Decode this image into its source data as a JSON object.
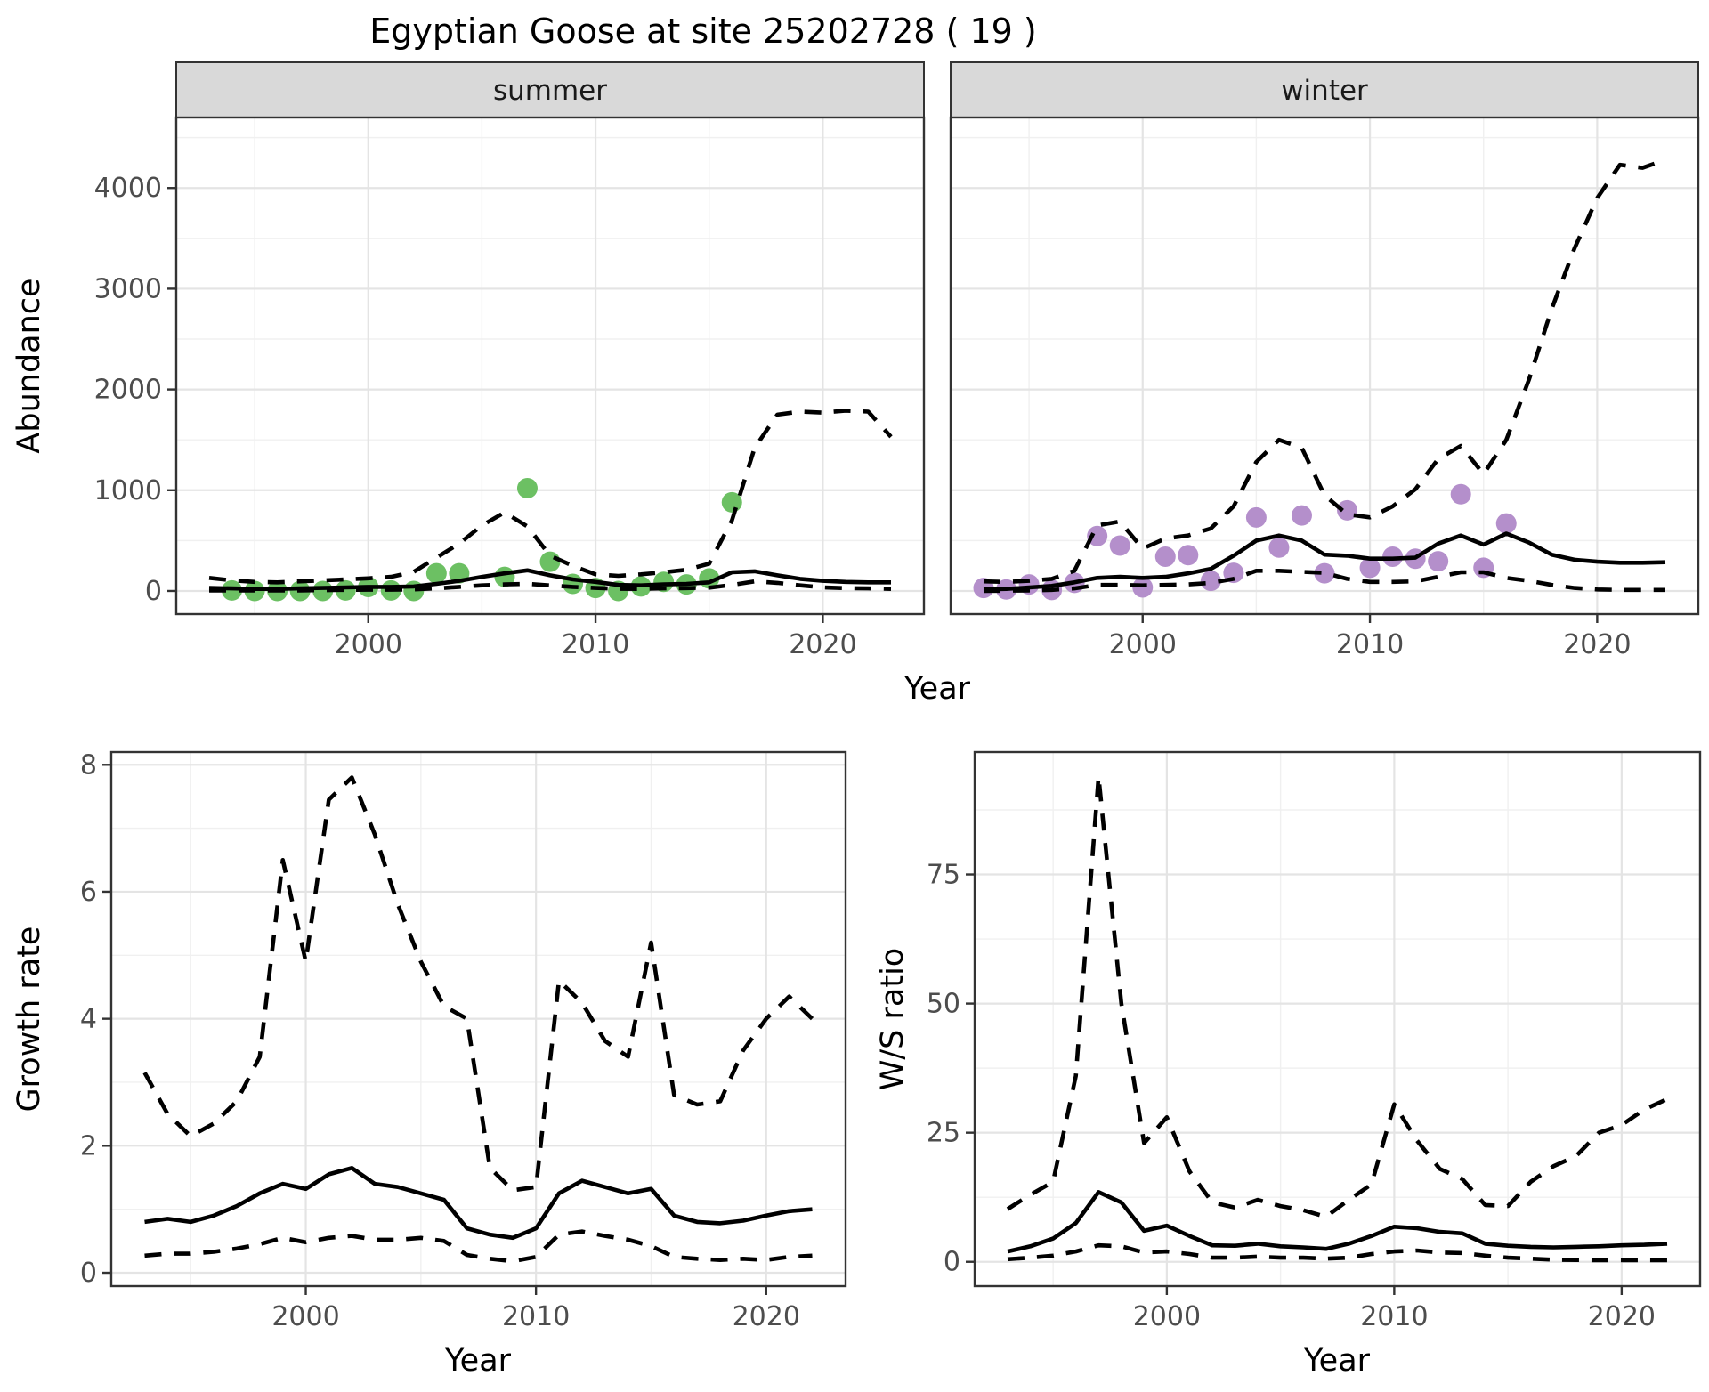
{
  "title": "Egyptian Goose at site 25202728 ( 19 )",
  "colors": {
    "background": "#ffffff",
    "strip_bg": "#d9d9d9",
    "panel_border": "#333333",
    "grid_major": "#e4e4e4",
    "grid_minor": "#f0f0f0",
    "tick_label": "#4d4d4d",
    "tick_mark": "#333333",
    "line": "#000000",
    "summer_points": "#6cc063",
    "winter_points": "#b48fcb"
  },
  "chart_data": [
    {
      "id": "abundance-summer",
      "type": "line",
      "facet_label": "summer",
      "xlabel": "Year",
      "ylabel": "Abundance",
      "x_ticks": [
        2000,
        2010,
        2020
      ],
      "x_minor_ticks": [
        1995,
        2005,
        2015
      ],
      "y_ticks": [
        0,
        1000,
        2000,
        3000,
        4000
      ],
      "y_minor_ticks": [
        500,
        1500,
        2500,
        3500,
        4500
      ],
      "ylim": [
        -230,
        4700
      ],
      "point_color": "#6cc063",
      "legend": "none",
      "grid": "on",
      "series": {
        "observed": {
          "years": [
            1994,
            1995,
            1996,
            1997,
            1998,
            1999,
            2000,
            2001,
            2002,
            2003,
            2004,
            2006,
            2007,
            2008,
            2009,
            2010,
            2011,
            2012,
            2013,
            2014,
            2015,
            2016
          ],
          "values": [
            5,
            0,
            0,
            0,
            0,
            5,
            40,
            5,
            0,
            175,
            175,
            140,
            1020,
            290,
            70,
            30,
            0,
            45,
            90,
            65,
            125,
            880
          ]
        },
        "fitted": {
          "years": [
            1993,
            1994,
            1995,
            1996,
            1997,
            1998,
            1999,
            2000,
            2001,
            2002,
            2003,
            2004,
            2005,
            2006,
            2007,
            2008,
            2009,
            2010,
            2011,
            2012,
            2013,
            2014,
            2015,
            2016,
            2017,
            2018,
            2019,
            2020,
            2021,
            2022,
            2023
          ],
          "values": [
            30,
            25,
            20,
            20,
            25,
            30,
            35,
            40,
            40,
            45,
            70,
            100,
            140,
            175,
            205,
            155,
            115,
            90,
            60,
            55,
            65,
            70,
            85,
            185,
            195,
            155,
            120,
            100,
            90,
            85,
            85
          ]
        },
        "upper_ci": {
          "years": [
            1993,
            1994,
            1995,
            1996,
            1997,
            1998,
            1999,
            2000,
            2001,
            2002,
            2003,
            2004,
            2005,
            2006,
            2007,
            2008,
            2009,
            2010,
            2011,
            2012,
            2013,
            2014,
            2015,
            2016,
            2017,
            2018,
            2019,
            2020,
            2021,
            2022,
            2023
          ],
          "values": [
            130,
            105,
            90,
            85,
            95,
            105,
            115,
            125,
            140,
            190,
            330,
            470,
            650,
            780,
            640,
            350,
            250,
            165,
            150,
            165,
            185,
            210,
            270,
            700,
            1420,
            1750,
            1780,
            1770,
            1790,
            1780,
            1530
          ]
        },
        "lower_ci": {
          "years": [
            1993,
            1994,
            1995,
            1996,
            1997,
            1998,
            1999,
            2000,
            2001,
            2002,
            2003,
            2004,
            2005,
            2006,
            2007,
            2008,
            2009,
            2010,
            2011,
            2012,
            2013,
            2014,
            2015,
            2016,
            2017,
            2018,
            2019,
            2020,
            2021,
            2022,
            2023
          ],
          "values": [
            5,
            5,
            5,
            5,
            5,
            8,
            10,
            12,
            12,
            15,
            25,
            40,
            55,
            65,
            70,
            55,
            40,
            30,
            22,
            20,
            25,
            28,
            32,
            60,
            95,
            80,
            55,
            35,
            28,
            25,
            20
          ]
        }
      }
    },
    {
      "id": "abundance-winter",
      "type": "line",
      "facet_label": "winter",
      "xlabel": "Year",
      "ylabel": "Abundance",
      "x_ticks": [
        2000,
        2010,
        2020
      ],
      "x_minor_ticks": [
        1995,
        2005,
        2015
      ],
      "y_ticks": [
        0,
        1000,
        2000,
        3000,
        4000
      ],
      "y_minor_ticks": [
        500,
        1500,
        2500,
        3500,
        4500
      ],
      "ylim": [
        -230,
        4700
      ],
      "point_color": "#b48fcb",
      "legend": "none",
      "grid": "on",
      "series": {
        "observed": {
          "years": [
            1993,
            1994,
            1995,
            1996,
            1997,
            1998,
            1999,
            2000,
            2001,
            2002,
            2003,
            2004,
            2005,
            2006,
            2007,
            2008,
            2009,
            2010,
            2011,
            2012,
            2013,
            2014,
            2015,
            2016
          ],
          "values": [
            30,
            15,
            65,
            10,
            80,
            545,
            450,
            35,
            340,
            355,
            100,
            180,
            730,
            430,
            750,
            175,
            800,
            230,
            340,
            320,
            295,
            960,
            230,
            670
          ]
        },
        "fitted": {
          "years": [
            1993,
            1994,
            1995,
            1996,
            1997,
            1998,
            1999,
            2000,
            2001,
            2002,
            2003,
            2004,
            2005,
            2006,
            2007,
            2008,
            2009,
            2010,
            2011,
            2012,
            2013,
            2014,
            2015,
            2016,
            2017,
            2018,
            2019,
            2020,
            2021,
            2022,
            2023
          ],
          "values": [
            15,
            20,
            35,
            50,
            85,
            130,
            140,
            130,
            140,
            175,
            220,
            350,
            500,
            550,
            500,
            360,
            350,
            320,
            320,
            330,
            470,
            550,
            460,
            570,
            480,
            360,
            310,
            290,
            280,
            280,
            285
          ]
        },
        "upper_ci": {
          "years": [
            1993,
            1994,
            1995,
            1996,
            1997,
            1998,
            1999,
            2000,
            2001,
            2002,
            2003,
            2004,
            2005,
            2006,
            2007,
            2008,
            2009,
            2010,
            2011,
            2012,
            2013,
            2014,
            2015,
            2016,
            2017,
            2018,
            2019,
            2020,
            2021,
            2022,
            2023
          ],
          "values": [
            95,
            90,
            100,
            120,
            200,
            650,
            690,
            420,
            520,
            550,
            620,
            840,
            1280,
            1500,
            1420,
            950,
            760,
            730,
            840,
            1010,
            1310,
            1440,
            1160,
            1500,
            2100,
            2800,
            3400,
            3900,
            4230,
            4200,
            4280
          ]
        },
        "lower_ci": {
          "years": [
            1993,
            1994,
            1995,
            1996,
            1997,
            1998,
            1999,
            2000,
            2001,
            2002,
            2003,
            2004,
            2005,
            2006,
            2007,
            2008,
            2009,
            2010,
            2011,
            2012,
            2013,
            2014,
            2015,
            2016,
            2017,
            2018,
            2019,
            2020,
            2021,
            2022,
            2023
          ],
          "values": [
            0,
            2,
            5,
            10,
            25,
            60,
            60,
            55,
            60,
            65,
            80,
            120,
            200,
            200,
            190,
            180,
            120,
            90,
            90,
            95,
            140,
            185,
            185,
            130,
            100,
            60,
            30,
            15,
            10,
            10,
            10
          ]
        }
      }
    },
    {
      "id": "growth-rate",
      "type": "line",
      "xlabel": "Year",
      "ylabel": "Growth rate",
      "x_ticks": [
        2000,
        2010,
        2020
      ],
      "x_minor_ticks": [
        1995,
        2005,
        2015
      ],
      "y_ticks": [
        0,
        2,
        4,
        6,
        8
      ],
      "y_minor_ticks": [
        1,
        3,
        5,
        7
      ],
      "ylim": [
        -0.21,
        8.2
      ],
      "legend": "none",
      "grid": "on",
      "series": {
        "fitted": {
          "years": [
            1993,
            1994,
            1995,
            1996,
            1997,
            1998,
            1999,
            2000,
            2001,
            2002,
            2003,
            2004,
            2005,
            2006,
            2007,
            2008,
            2009,
            2010,
            2011,
            2012,
            2013,
            2014,
            2015,
            2016,
            2017,
            2018,
            2019,
            2020,
            2021,
            2022
          ],
          "values": [
            0.8,
            0.85,
            0.8,
            0.9,
            1.05,
            1.25,
            1.4,
            1.32,
            1.55,
            1.65,
            1.4,
            1.35,
            1.25,
            1.15,
            0.7,
            0.6,
            0.55,
            0.7,
            1.25,
            1.45,
            1.35,
            1.25,
            1.32,
            0.9,
            0.8,
            0.78,
            0.82,
            0.9,
            0.97,
            1.0
          ]
        },
        "upper_ci": {
          "years": [
            1993,
            1994,
            1995,
            1996,
            1997,
            1998,
            1999,
            2000,
            2001,
            2002,
            2003,
            2004,
            2005,
            2006,
            2007,
            2008,
            2009,
            2010,
            2011,
            2012,
            2013,
            2014,
            2015,
            2016,
            2017,
            2018,
            2019,
            2020,
            2021,
            2022
          ],
          "values": [
            3.15,
            2.5,
            2.15,
            2.35,
            2.7,
            3.4,
            6.5,
            4.9,
            7.45,
            7.8,
            6.9,
            5.8,
            4.9,
            4.2,
            4.0,
            1.65,
            1.3,
            1.35,
            4.6,
            4.25,
            3.65,
            3.4,
            5.2,
            2.8,
            2.65,
            2.7,
            3.5,
            4.0,
            4.35,
            4.0
          ]
        },
        "lower_ci": {
          "years": [
            1993,
            1994,
            1995,
            1996,
            1997,
            1998,
            1999,
            2000,
            2001,
            2002,
            2003,
            2004,
            2005,
            2006,
            2007,
            2008,
            2009,
            2010,
            2011,
            2012,
            2013,
            2014,
            2015,
            2016,
            2017,
            2018,
            2019,
            2020,
            2021,
            2022
          ],
          "values": [
            0.27,
            0.3,
            0.3,
            0.33,
            0.38,
            0.45,
            0.55,
            0.48,
            0.55,
            0.58,
            0.52,
            0.52,
            0.55,
            0.5,
            0.28,
            0.22,
            0.18,
            0.25,
            0.6,
            0.65,
            0.58,
            0.52,
            0.42,
            0.25,
            0.22,
            0.2,
            0.22,
            0.2,
            0.25,
            0.27
          ]
        }
      }
    },
    {
      "id": "ws-ratio",
      "type": "line",
      "xlabel": "Year",
      "ylabel": "W/S ratio",
      "x_ticks": [
        2000,
        2010,
        2020
      ],
      "x_minor_ticks": [
        1995,
        2005,
        2015
      ],
      "y_ticks": [
        0,
        25,
        50,
        75
      ],
      "y_minor_ticks": [
        12.5,
        37.5,
        62.5,
        87.5
      ],
      "ylim": [
        -4.7,
        98.7
      ],
      "legend": "none",
      "grid": "on",
      "series": {
        "fitted": {
          "years": [
            1993,
            1994,
            1995,
            1996,
            1997,
            1998,
            1999,
            2000,
            2001,
            2002,
            2003,
            2004,
            2005,
            2006,
            2007,
            2008,
            2009,
            2010,
            2011,
            2012,
            2013,
            2014,
            2015,
            2016,
            2017,
            2018,
            2019,
            2020,
            2021,
            2022
          ],
          "values": [
            2.0,
            3.0,
            4.5,
            7.5,
            13.5,
            11.5,
            6.0,
            7.0,
            5.0,
            3.2,
            3.1,
            3.5,
            3.0,
            2.8,
            2.5,
            3.5,
            5.0,
            6.8,
            6.5,
            5.8,
            5.5,
            3.5,
            3.1,
            2.9,
            2.8,
            2.9,
            3.0,
            3.2,
            3.3,
            3.5
          ]
        },
        "upper_ci": {
          "years": [
            1993,
            1994,
            1995,
            1996,
            1997,
            1998,
            1999,
            2000,
            2001,
            2002,
            2003,
            2004,
            2005,
            2006,
            2007,
            2008,
            2009,
            2010,
            2011,
            2012,
            2013,
            2014,
            2015,
            2016,
            2017,
            2018,
            2019,
            2020,
            2021,
            2022
          ],
          "values": [
            10.2,
            13,
            15.5,
            36,
            94,
            50,
            23,
            28,
            17.5,
            11.5,
            10.5,
            12,
            10.8,
            10,
            8.7,
            12,
            15,
            30.5,
            23.5,
            18,
            16,
            11,
            10.8,
            15.5,
            18.5,
            20.5,
            25,
            26.5,
            29.5,
            31.5
          ]
        },
        "lower_ci": {
          "years": [
            1993,
            1994,
            1995,
            1996,
            1997,
            1998,
            1999,
            2000,
            2001,
            2002,
            2003,
            2004,
            2005,
            2006,
            2007,
            2008,
            2009,
            2010,
            2011,
            2012,
            2013,
            2014,
            2015,
            2016,
            2017,
            2018,
            2019,
            2020,
            2021,
            2022
          ],
          "values": [
            0.5,
            0.8,
            1.2,
            2.0,
            3.2,
            3.0,
            1.8,
            2.0,
            1.5,
            0.8,
            0.8,
            1.0,
            0.8,
            0.8,
            0.6,
            0.8,
            1.5,
            2.0,
            2.2,
            1.8,
            1.7,
            1.2,
            0.8,
            0.6,
            0.4,
            0.35,
            0.3,
            0.3,
            0.3,
            0.3
          ]
        }
      }
    }
  ]
}
